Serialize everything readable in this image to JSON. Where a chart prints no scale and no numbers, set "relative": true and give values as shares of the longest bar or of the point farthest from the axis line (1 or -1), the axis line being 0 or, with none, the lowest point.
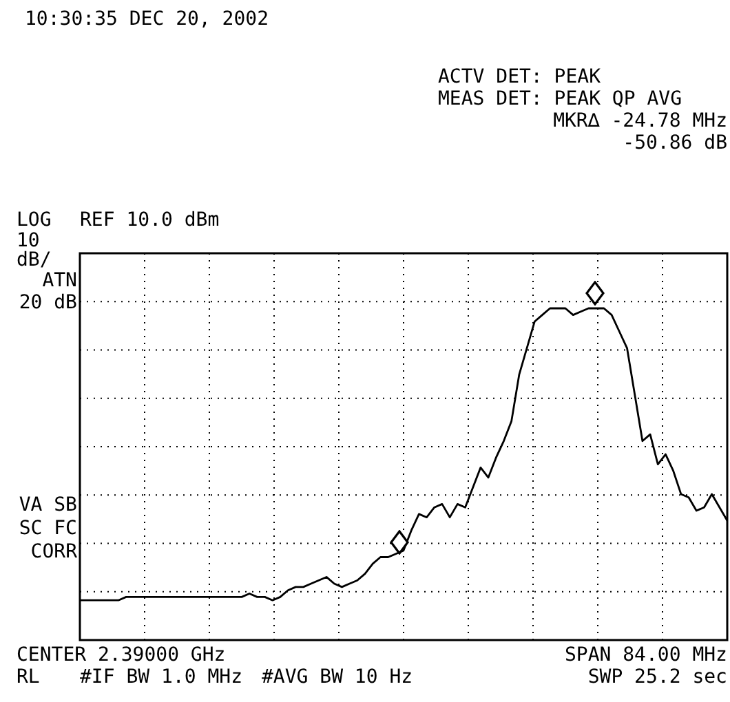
{
  "chart_data": {
    "type": "line",
    "title": "10:30:35 DEC 20, 2002",
    "annotations": [
      "ACTV DET: PEAK",
      "MEAS DET: PEAK QP AVG",
      "MKR∆ -24.78 MHz",
      "-50.86 dB",
      "LOG",
      "REF 10.0 dBm",
      "10",
      "dB/",
      "ATN",
      "20 dB",
      "VA SB",
      "SC FC",
      "CORR",
      "CENTER 2.39000 GHz",
      "SPAN 84.00 MHz",
      "RL",
      "#IF BW 1.0 MHz",
      "#AVG BW 10 Hz",
      "SWP 25.2 sec"
    ],
    "relative": true,
    "grid": true,
    "line_style": "solid",
    "categories": [
      null,
      null,
      null,
      null,
      null,
      null,
      null,
      null,
      null,
      null,
      null,
      null,
      null,
      null,
      null,
      null,
      null,
      null,
      null,
      null,
      null,
      null,
      null,
      null,
      null,
      null,
      null,
      null,
      null,
      null,
      null,
      null,
      null,
      null,
      null,
      null,
      null,
      null,
      null,
      null,
      null,
      null,
      null,
      null,
      null,
      null,
      null,
      null,
      null,
      null,
      null,
      null,
      null,
      null,
      null,
      null,
      null,
      null,
      null,
      null,
      null,
      null,
      null,
      null,
      null,
      null,
      null,
      null,
      null,
      null,
      null,
      null,
      null,
      null,
      null,
      null,
      null,
      null,
      null,
      null,
      null,
      null,
      null,
      null,
      null
    ],
    "series": [
      {
        "type": "line",
        "color": "#000000",
        "marker": "none",
        "values": [
          0.12,
          0.12,
          0.12,
          0.12,
          0.12,
          0.12,
          0.13,
          0.13,
          0.13,
          0.13,
          0.13,
          0.13,
          0.13,
          0.13,
          0.13,
          0.13,
          0.13,
          0.13,
          0.13,
          0.13,
          0.13,
          0.13,
          0.14,
          0.13,
          0.13,
          0.12,
          0.13,
          0.15,
          0.16,
          0.16,
          0.17,
          0.18,
          0.19,
          0.17,
          0.16,
          0.17,
          0.18,
          0.2,
          0.23,
          0.25,
          0.25,
          0.26,
          0.27,
          0.33,
          0.38,
          0.37,
          0.4,
          0.41,
          0.37,
          0.41,
          0.4,
          0.46,
          0.52,
          0.49,
          0.55,
          0.6,
          0.66,
          0.8,
          0.88,
          0.96,
          0.98,
          1,
          1,
          1,
          0.98,
          0.99,
          1,
          1,
          1,
          0.98,
          0.93,
          0.88,
          0.74,
          0.6,
          0.62,
          0.53,
          0.56,
          0.51,
          0.44,
          0.43,
          0.39,
          0.4,
          0.44,
          0.4,
          0.36
        ]
      }
    ]
  }
}
